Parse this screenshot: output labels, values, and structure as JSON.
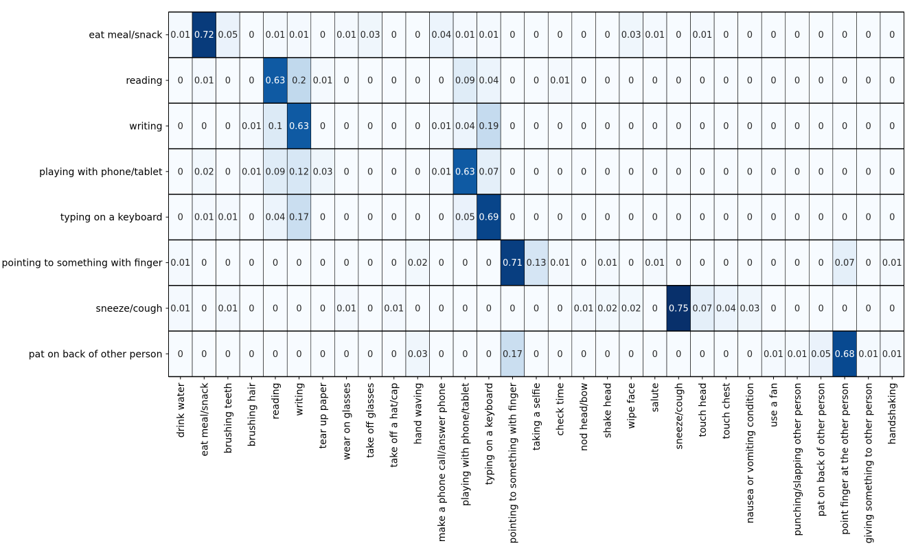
{
  "chart_data": {
    "type": "heatmap",
    "title": "",
    "xlabel": "",
    "ylabel": "",
    "colormap": "Blues",
    "color_min": "#f7fbff",
    "color_max": "#08306b",
    "vmin": 0,
    "vmax": 0.75,
    "grid": true,
    "rows": [
      "eat meal/snack",
      "reading",
      "writing",
      "playing with phone/tablet",
      "typing on a keyboard",
      "pointing to something with finger",
      "sneeze/cough",
      "pat on back of other person"
    ],
    "columns": [
      "drink water",
      "eat meal/snack",
      "brushing teeth",
      "brushing hair",
      "reading",
      "writing",
      "tear up paper",
      "wear on glasses",
      "take off glasses",
      "take off a hat/cap",
      "hand waving",
      "make a phone call/answer phone",
      "playing with phone/tablet",
      "typing on a keyboard",
      "pointing to something with finger",
      "taking a selfie",
      "check time",
      "nod head/bow",
      "shake head",
      "wipe face",
      "salute",
      "sneeze/cough",
      "touch head",
      "touch chest",
      "nausea or vomiting condition",
      "use a fan",
      "punching/slapping other person",
      "pat on back of other person",
      "point finger at the other person",
      "giving something to other person",
      "handshaking"
    ],
    "values": [
      [
        0.01,
        0.72,
        0.05,
        0,
        0.01,
        0.01,
        0,
        0.01,
        0.03,
        0,
        0,
        0.04,
        0.01,
        0.01,
        0,
        0,
        0,
        0,
        0,
        0.03,
        0.01,
        0,
        0.01,
        0,
        0,
        0,
        0,
        0,
        0,
        0,
        0
      ],
      [
        0,
        0.01,
        0,
        0,
        0.63,
        0.2,
        0.01,
        0,
        0,
        0,
        0,
        0,
        0.09,
        0.04,
        0,
        0,
        0.01,
        0,
        0,
        0,
        0,
        0,
        0,
        0,
        0,
        0,
        0,
        0,
        0,
        0,
        0
      ],
      [
        0,
        0,
        0,
        0.01,
        0.1,
        0.63,
        0,
        0,
        0,
        0,
        0,
        0.01,
        0.04,
        0.19,
        0,
        0,
        0,
        0,
        0,
        0,
        0,
        0,
        0,
        0,
        0,
        0,
        0,
        0,
        0,
        0,
        0
      ],
      [
        0,
        0.02,
        0,
        0.01,
        0.09,
        0.12,
        0.03,
        0,
        0,
        0,
        0,
        0.01,
        0.63,
        0.07,
        0,
        0,
        0,
        0,
        0,
        0,
        0,
        0,
        0,
        0,
        0,
        0,
        0,
        0,
        0,
        0,
        0
      ],
      [
        0,
        0.01,
        0.01,
        0,
        0.04,
        0.17,
        0,
        0,
        0,
        0,
        0,
        0,
        0.05,
        0.69,
        0,
        0,
        0,
        0,
        0,
        0,
        0,
        0,
        0,
        0,
        0,
        0,
        0,
        0,
        0,
        0,
        0
      ],
      [
        0.01,
        0,
        0,
        0,
        0,
        0,
        0,
        0,
        0,
        0,
        0.02,
        0,
        0,
        0,
        0.71,
        0.13,
        0.01,
        0,
        0.01,
        0,
        0.01,
        0,
        0,
        0,
        0,
        0,
        0,
        0,
        0.07,
        0,
        0.01
      ],
      [
        0.01,
        0,
        0.01,
        0,
        0,
        0,
        0,
        0.01,
        0,
        0.01,
        0,
        0,
        0,
        0,
        0,
        0,
        0,
        0.01,
        0.02,
        0.02,
        0,
        0.75,
        0.07,
        0.04,
        0.03,
        0,
        0,
        0,
        0,
        0,
        0
      ],
      [
        0,
        0,
        0,
        0,
        0,
        0,
        0,
        0,
        0,
        0,
        0.03,
        0,
        0,
        0,
        0.17,
        0,
        0,
        0,
        0,
        0,
        0,
        0,
        0,
        0,
        0,
        0.01,
        0.01,
        0.05,
        0.68,
        0.01,
        0.01
      ]
    ]
  }
}
